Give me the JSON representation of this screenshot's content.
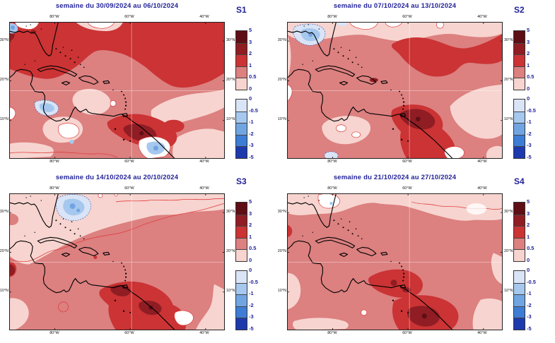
{
  "panels": [
    {
      "id": "S1",
      "title": "semaine du 30/09/2024 au 06/10/2024",
      "label": "S1"
    },
    {
      "id": "S2",
      "title": "semaine du 07/10/2024 au 13/10/2024",
      "label": "S2"
    },
    {
      "id": "S3",
      "title": "semaine du 14/10/2024 au 20/10/2024",
      "label": "S3"
    },
    {
      "id": "S4",
      "title": "semaine du 21/10/2024 au 27/10/2024",
      "label": "S4"
    }
  ],
  "axes": {
    "x_ticks": [
      "80°W",
      "60°W",
      "40°W"
    ],
    "y_ticks": [
      "30°N",
      "20°N",
      "10°N"
    ]
  },
  "colorbar": {
    "positive_labels": [
      "5",
      "3",
      "2",
      "1",
      "0.5",
      "0"
    ],
    "negative_labels": [
      "0",
      "-0.5",
      "-1",
      "-2",
      "-3",
      "-5"
    ],
    "positive_colors": [
      "#5f0e16",
      "#8f1d23",
      "#cb3334",
      "#dc8080",
      "#f7d4cf"
    ],
    "negative_colors": [
      "#d9e4f6",
      "#a6c8ee",
      "#71a5e2",
      "#3d7dd5",
      "#1c3aad"
    ]
  },
  "palette": {
    "title_color": "#22229a",
    "tick_label_color": "#111111",
    "map_border_color": "#222222",
    "coast_color": "#000000",
    "contour_line_color": "#e04040",
    "gridline_color": "#ffffff",
    "background": "#ffffff",
    "white_band": "#ffffff"
  }
}
